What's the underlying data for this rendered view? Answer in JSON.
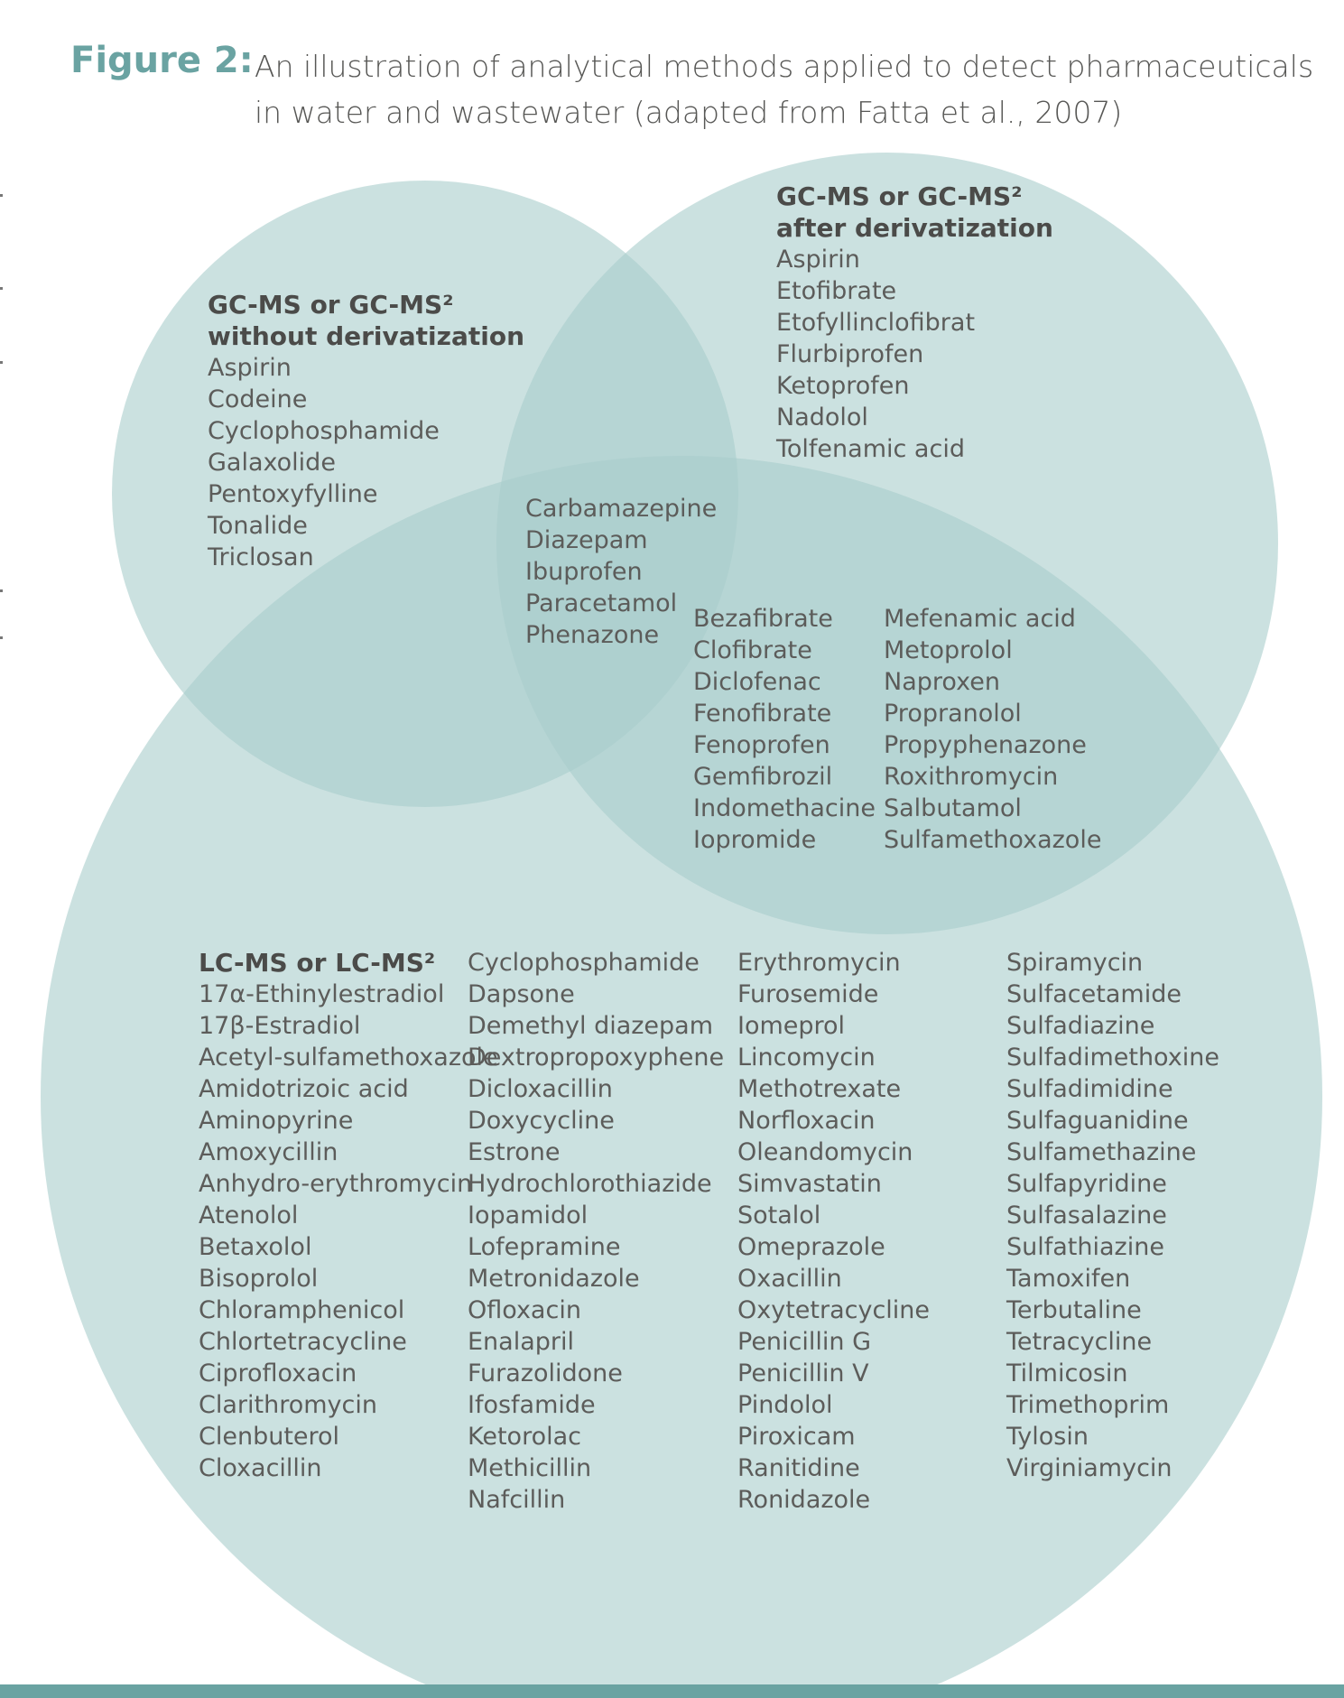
{
  "caption": {
    "label": "Figure 2:",
    "text": "An illustration of analytical methods applied to detect pharmaceuticals in water and wastewater (adapted from Fatta et al., 2007)"
  },
  "colors": {
    "circle_fill": "#a9cdcc",
    "accent": "#6aa3a2",
    "text": "#5a5a58"
  },
  "gc_without": {
    "heading": "GC-MS or GC-MS²\nwithout derivatization",
    "items": [
      "Aspirin",
      "Codeine",
      "Cyclophosphamide",
      "Galaxolide",
      "Pentoxyfylline",
      "Tonalide",
      "Triclosan"
    ]
  },
  "gc_after": {
    "heading": "GC-MS or GC-MS²\nafter derivatization",
    "items": [
      "Aspirin",
      "Etofibrate",
      "Etofyllinclofibrat",
      "Flurbiprofen",
      "Ketoprofen",
      "Nadolol",
      "Tolfenamic acid"
    ]
  },
  "all_three": {
    "items": [
      "Carbamazepine",
      "Diazepam",
      "Ibuprofen",
      "Paracetamol",
      "Phenazone"
    ]
  },
  "gc_after_and_lc": {
    "col1": [
      "Bezafibrate",
      "Clofibrate",
      "Diclofenac",
      "Fenofibrate",
      "Fenoprofen",
      "Gemfibrozil",
      "Indomethacine",
      "Iopromide"
    ],
    "col2": [
      "Mefenamic acid",
      "Metoprolol",
      "Naproxen",
      "Propranolol",
      "Propyphenazone",
      "Roxithromycin",
      "Salbutamol",
      "Sulfamethoxazole"
    ]
  },
  "lc": {
    "heading": "LC-MS or LC-MS²",
    "col1": [
      "17α-Ethinylestradiol",
      "17β-Estradiol",
      "Acetyl-sulfamethoxazole",
      "Amidotrizoic acid",
      "Aminopyrine",
      "Amoxycillin",
      "Anhydro-erythromycin",
      "Atenolol",
      "Betaxolol",
      "Bisoprolol",
      "Chloramphenicol",
      "Chlortetracycline",
      "Ciprofloxacin",
      "Clarithromycin",
      "Clenbuterol",
      "Cloxacillin"
    ],
    "col2": [
      "Cyclophosphamide",
      "Dapsone",
      "Demethyl diazepam",
      "Dextropropoxyphene",
      "Dicloxacillin",
      "Doxycycline",
      "Estrone",
      "Hydrochlorothiazide",
      "Iopamidol",
      "Lofepramine",
      "Metronidazole",
      "Ofloxacin",
      "Enalapril",
      "Furazolidone",
      "Ifosfamide",
      "Ketorolac",
      "Methicillin",
      "Nafcillin"
    ],
    "col3": [
      "Erythromycin",
      "Furosemide",
      "Iomeprol",
      "Lincomycin",
      "Methotrexate",
      "Norfloxacin",
      "Oleandomycin",
      "Simvastatin",
      "Sotalol",
      "Omeprazole",
      "Oxacillin",
      "Oxytetracycline",
      "Penicillin G",
      "Penicillin V",
      "Pindolol",
      "Piroxicam",
      "Ranitidine",
      "Ronidazole"
    ],
    "col4": [
      "Spiramycin",
      "Sulfacetamide",
      "Sulfadiazine",
      "Sulfadimethoxine",
      "Sulfadimidine",
      "Sulfaguanidine",
      "Sulfamethazine",
      "Sulfapyridine",
      "Sulfasalazine",
      "Sulfathiazine",
      "Tamoxifen",
      "Terbutaline",
      "Tetracycline",
      "Tilmicosin",
      "Trimethoprim",
      "Tylosin",
      "Virginiamycin"
    ]
  }
}
